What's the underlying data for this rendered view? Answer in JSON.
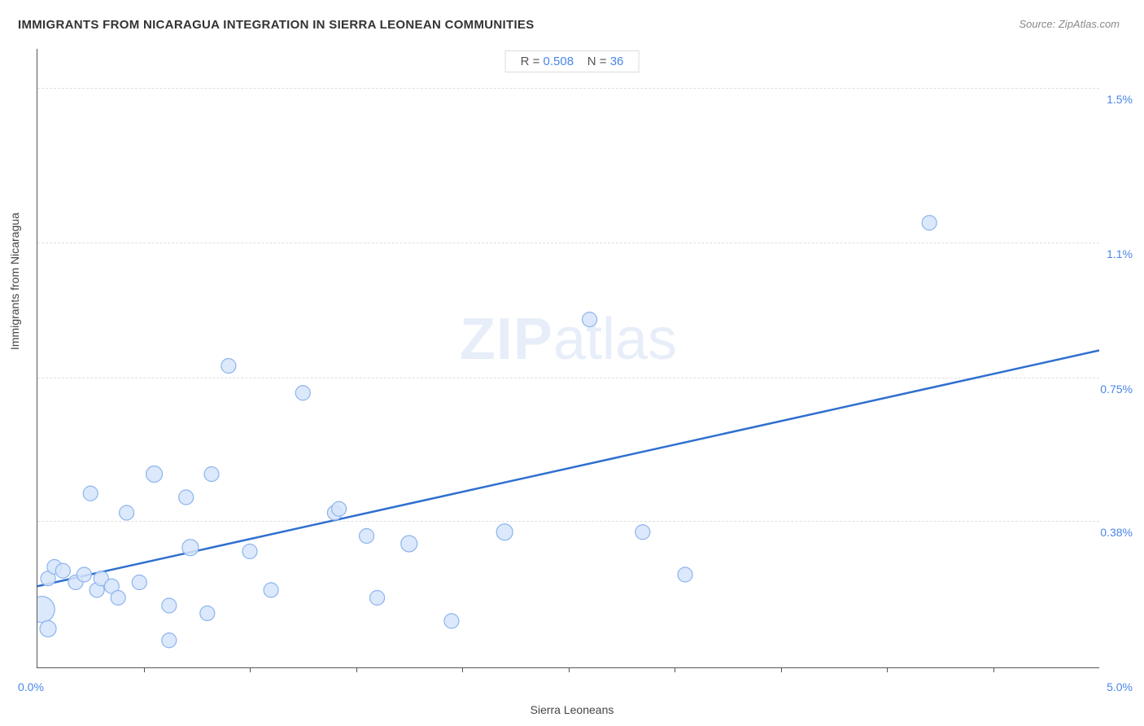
{
  "title": "IMMIGRANTS FROM NICARAGUA INTEGRATION IN SIERRA LEONEAN COMMUNITIES",
  "source": "Source: ZipAtlas.com",
  "watermark_zip": "ZIP",
  "watermark_atlas": "atlas",
  "stats": {
    "r_label": "R = ",
    "r_value": "0.508",
    "n_label": "N = ",
    "n_value": "36"
  },
  "chart": {
    "type": "scatter",
    "xlabel": "Sierra Leoneans",
    "ylabel": "Immigrants from Nicaragua",
    "xlim": [
      0.0,
      5.0
    ],
    "ylim": [
      0.0,
      1.6
    ],
    "x_min_label": "0.0%",
    "x_max_label": "5.0%",
    "y_tick_values": [
      0.38,
      0.75,
      1.1,
      1.5
    ],
    "y_tick_labels": [
      "0.38%",
      "0.75%",
      "1.1%",
      "1.5%"
    ],
    "x_tick_positions": [
      0.5,
      1.0,
      1.5,
      2.0,
      2.5,
      3.0,
      3.5,
      4.0,
      4.5
    ],
    "marker_fill": "#d6e4fa",
    "marker_stroke": "#8bb4ee",
    "marker_stroke_width": 1.2,
    "marker_radius_default": 9,
    "line_color": "#2f6fd0",
    "line_width": 2.5,
    "grid_color": "#dfdfdf",
    "axis_color": "#555555",
    "background_color": "#ffffff",
    "value_label_color": "#4a86e8",
    "title_color": "#333333",
    "title_fontsize": 15,
    "label_fontsize": 14,
    "tick_fontsize": 14,
    "watermark_color": "#e7eef9",
    "watermark_fontsize": 72,
    "trend_line": {
      "x1": 0.0,
      "y1": 0.21,
      "x2": 5.0,
      "y2": 0.82
    },
    "points": [
      {
        "x": 0.02,
        "y": 0.15,
        "r": 16
      },
      {
        "x": 0.05,
        "y": 0.1,
        "r": 10
      },
      {
        "x": 0.05,
        "y": 0.23,
        "r": 9
      },
      {
        "x": 0.08,
        "y": 0.26,
        "r": 9
      },
      {
        "x": 0.12,
        "y": 0.25,
        "r": 9
      },
      {
        "x": 0.18,
        "y": 0.22,
        "r": 9
      },
      {
        "x": 0.22,
        "y": 0.24,
        "r": 9
      },
      {
        "x": 0.25,
        "y": 0.45,
        "r": 9
      },
      {
        "x": 0.28,
        "y": 0.2,
        "r": 9
      },
      {
        "x": 0.3,
        "y": 0.23,
        "r": 9
      },
      {
        "x": 0.35,
        "y": 0.21,
        "r": 9
      },
      {
        "x": 0.38,
        "y": 0.18,
        "r": 9
      },
      {
        "x": 0.42,
        "y": 0.4,
        "r": 9
      },
      {
        "x": 0.48,
        "y": 0.22,
        "r": 9
      },
      {
        "x": 0.55,
        "y": 0.5,
        "r": 10
      },
      {
        "x": 0.62,
        "y": 0.16,
        "r": 9
      },
      {
        "x": 0.62,
        "y": 0.07,
        "r": 9
      },
      {
        "x": 0.7,
        "y": 0.44,
        "r": 9
      },
      {
        "x": 0.72,
        "y": 0.31,
        "r": 10
      },
      {
        "x": 0.8,
        "y": 0.14,
        "r": 9
      },
      {
        "x": 0.82,
        "y": 0.5,
        "r": 9
      },
      {
        "x": 0.9,
        "y": 0.78,
        "r": 9
      },
      {
        "x": 1.0,
        "y": 0.3,
        "r": 9
      },
      {
        "x": 1.1,
        "y": 0.2,
        "r": 9
      },
      {
        "x": 1.25,
        "y": 0.71,
        "r": 9
      },
      {
        "x": 1.4,
        "y": 0.4,
        "r": 9
      },
      {
        "x": 1.42,
        "y": 0.41,
        "r": 9
      },
      {
        "x": 1.55,
        "y": 0.34,
        "r": 9
      },
      {
        "x": 1.6,
        "y": 0.18,
        "r": 9
      },
      {
        "x": 1.75,
        "y": 0.32,
        "r": 10
      },
      {
        "x": 1.95,
        "y": 0.12,
        "r": 9
      },
      {
        "x": 2.2,
        "y": 0.35,
        "r": 10
      },
      {
        "x": 2.6,
        "y": 0.9,
        "r": 9
      },
      {
        "x": 2.85,
        "y": 0.35,
        "r": 9
      },
      {
        "x": 3.05,
        "y": 0.24,
        "r": 9
      },
      {
        "x": 4.2,
        "y": 1.15,
        "r": 9
      }
    ]
  }
}
